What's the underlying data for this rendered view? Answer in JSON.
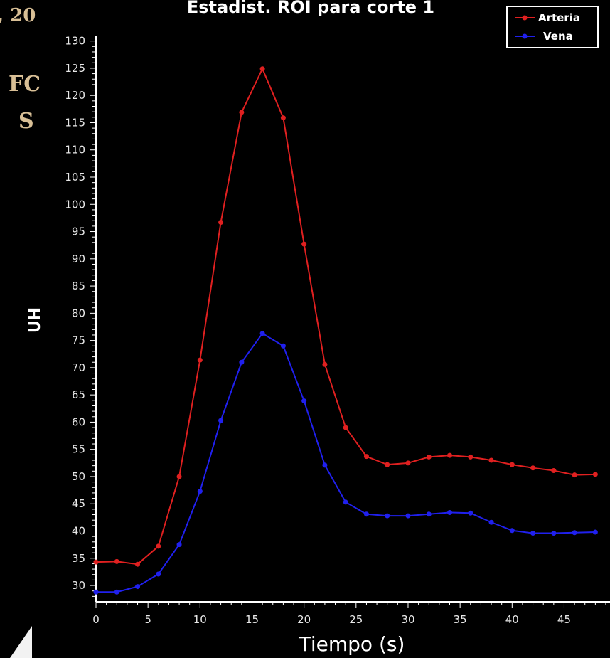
{
  "background_fragments": [
    ", 20",
    "FC",
    "S"
  ],
  "chart_data": {
    "type": "line",
    "title": "Estadist. ROI para corte 1",
    "xlabel": "Tiempo (s)",
    "ylabel": "UH",
    "xlim": [
      0,
      49
    ],
    "ylim": [
      27,
      131
    ],
    "xticks": [
      0,
      5,
      10,
      15,
      20,
      25,
      30,
      35,
      40,
      45
    ],
    "yticks": [
      30,
      35,
      40,
      45,
      50,
      55,
      60,
      65,
      70,
      75,
      80,
      85,
      90,
      95,
      100,
      105,
      110,
      115,
      120,
      125,
      130
    ],
    "grid": false,
    "legend_position": "top-right",
    "series": [
      {
        "name": "Arteria",
        "color": "#e02020",
        "x": [
          0,
          2,
          4,
          6,
          8,
          10,
          12,
          14,
          16,
          18,
          20,
          22,
          24,
          26,
          28,
          30,
          32,
          34,
          36,
          38,
          40,
          42,
          44,
          46,
          48
        ],
        "y": [
          34.3,
          34.4,
          33.9,
          37.2,
          50.0,
          71.4,
          96.7,
          116.9,
          124.9,
          115.9,
          92.7,
          70.6,
          59.0,
          53.7,
          52.2,
          52.5,
          53.6,
          53.9,
          53.6,
          53.0,
          52.2,
          51.6,
          51.1,
          50.3,
          50.4
        ]
      },
      {
        "name": "Vena",
        "color": "#2020ee",
        "x": [
          0,
          2,
          4,
          6,
          8,
          10,
          12,
          14,
          16,
          18,
          20,
          22,
          24,
          26,
          28,
          30,
          32,
          34,
          36,
          38,
          40,
          42,
          44,
          46,
          48
        ],
        "y": [
          28.8,
          28.8,
          29.8,
          32.1,
          37.5,
          47.3,
          60.3,
          71.0,
          76.3,
          74.0,
          63.9,
          52.1,
          45.3,
          43.1,
          42.8,
          42.8,
          43.1,
          43.4,
          43.3,
          41.6,
          40.1,
          39.6,
          39.6,
          39.7,
          39.8
        ]
      }
    ]
  }
}
